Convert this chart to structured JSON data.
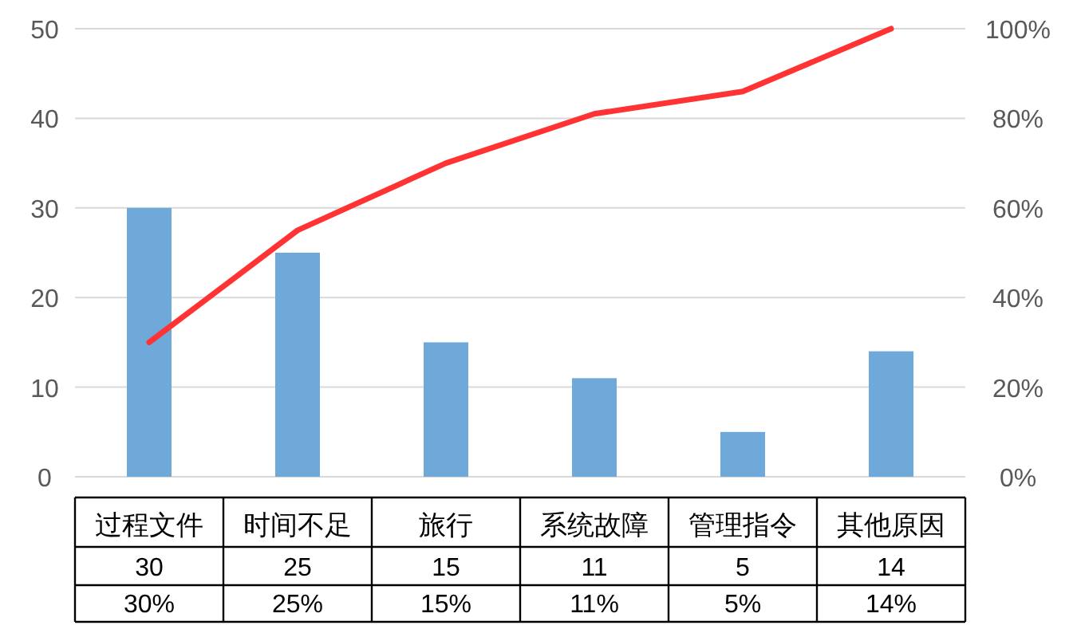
{
  "chart_data": {
    "type": "bar",
    "categories": [
      "过程文件",
      "时间不足",
      "旅行",
      "系统故障",
      "管理指令",
      "其他原因"
    ],
    "series": [
      {
        "color": "#6fa9da",
        "values": [
          30,
          25,
          15,
          11,
          5,
          14
        ],
        "value_labels": [
          "30",
          "25",
          "15",
          "11",
          "5",
          "14"
        ]
      },
      {
        "type": "line",
        "axis": "y2",
        "color": "#ff3333",
        "values": [
          30,
          55,
          70,
          81,
          86,
          100
        ]
      }
    ],
    "ylim": [
      0,
      50
    ],
    "yticks": [
      0,
      10,
      20,
      30,
      40,
      50
    ],
    "y2lim": [
      0,
      100
    ],
    "y2ticks": [
      {
        "value": 0,
        "label": "0%"
      },
      {
        "value": 20,
        "label": "20%"
      },
      {
        "value": 40,
        "label": "40%"
      },
      {
        "value": 60,
        "label": "60%"
      },
      {
        "value": 80,
        "label": "80%"
      },
      {
        "value": 100,
        "label": "100%"
      }
    ],
    "grid": "y",
    "marker": "none",
    "line_style": "solid",
    "annotations": [
      "30%",
      "25%",
      "15%",
      "11%",
      "5%",
      "14%"
    ]
  }
}
